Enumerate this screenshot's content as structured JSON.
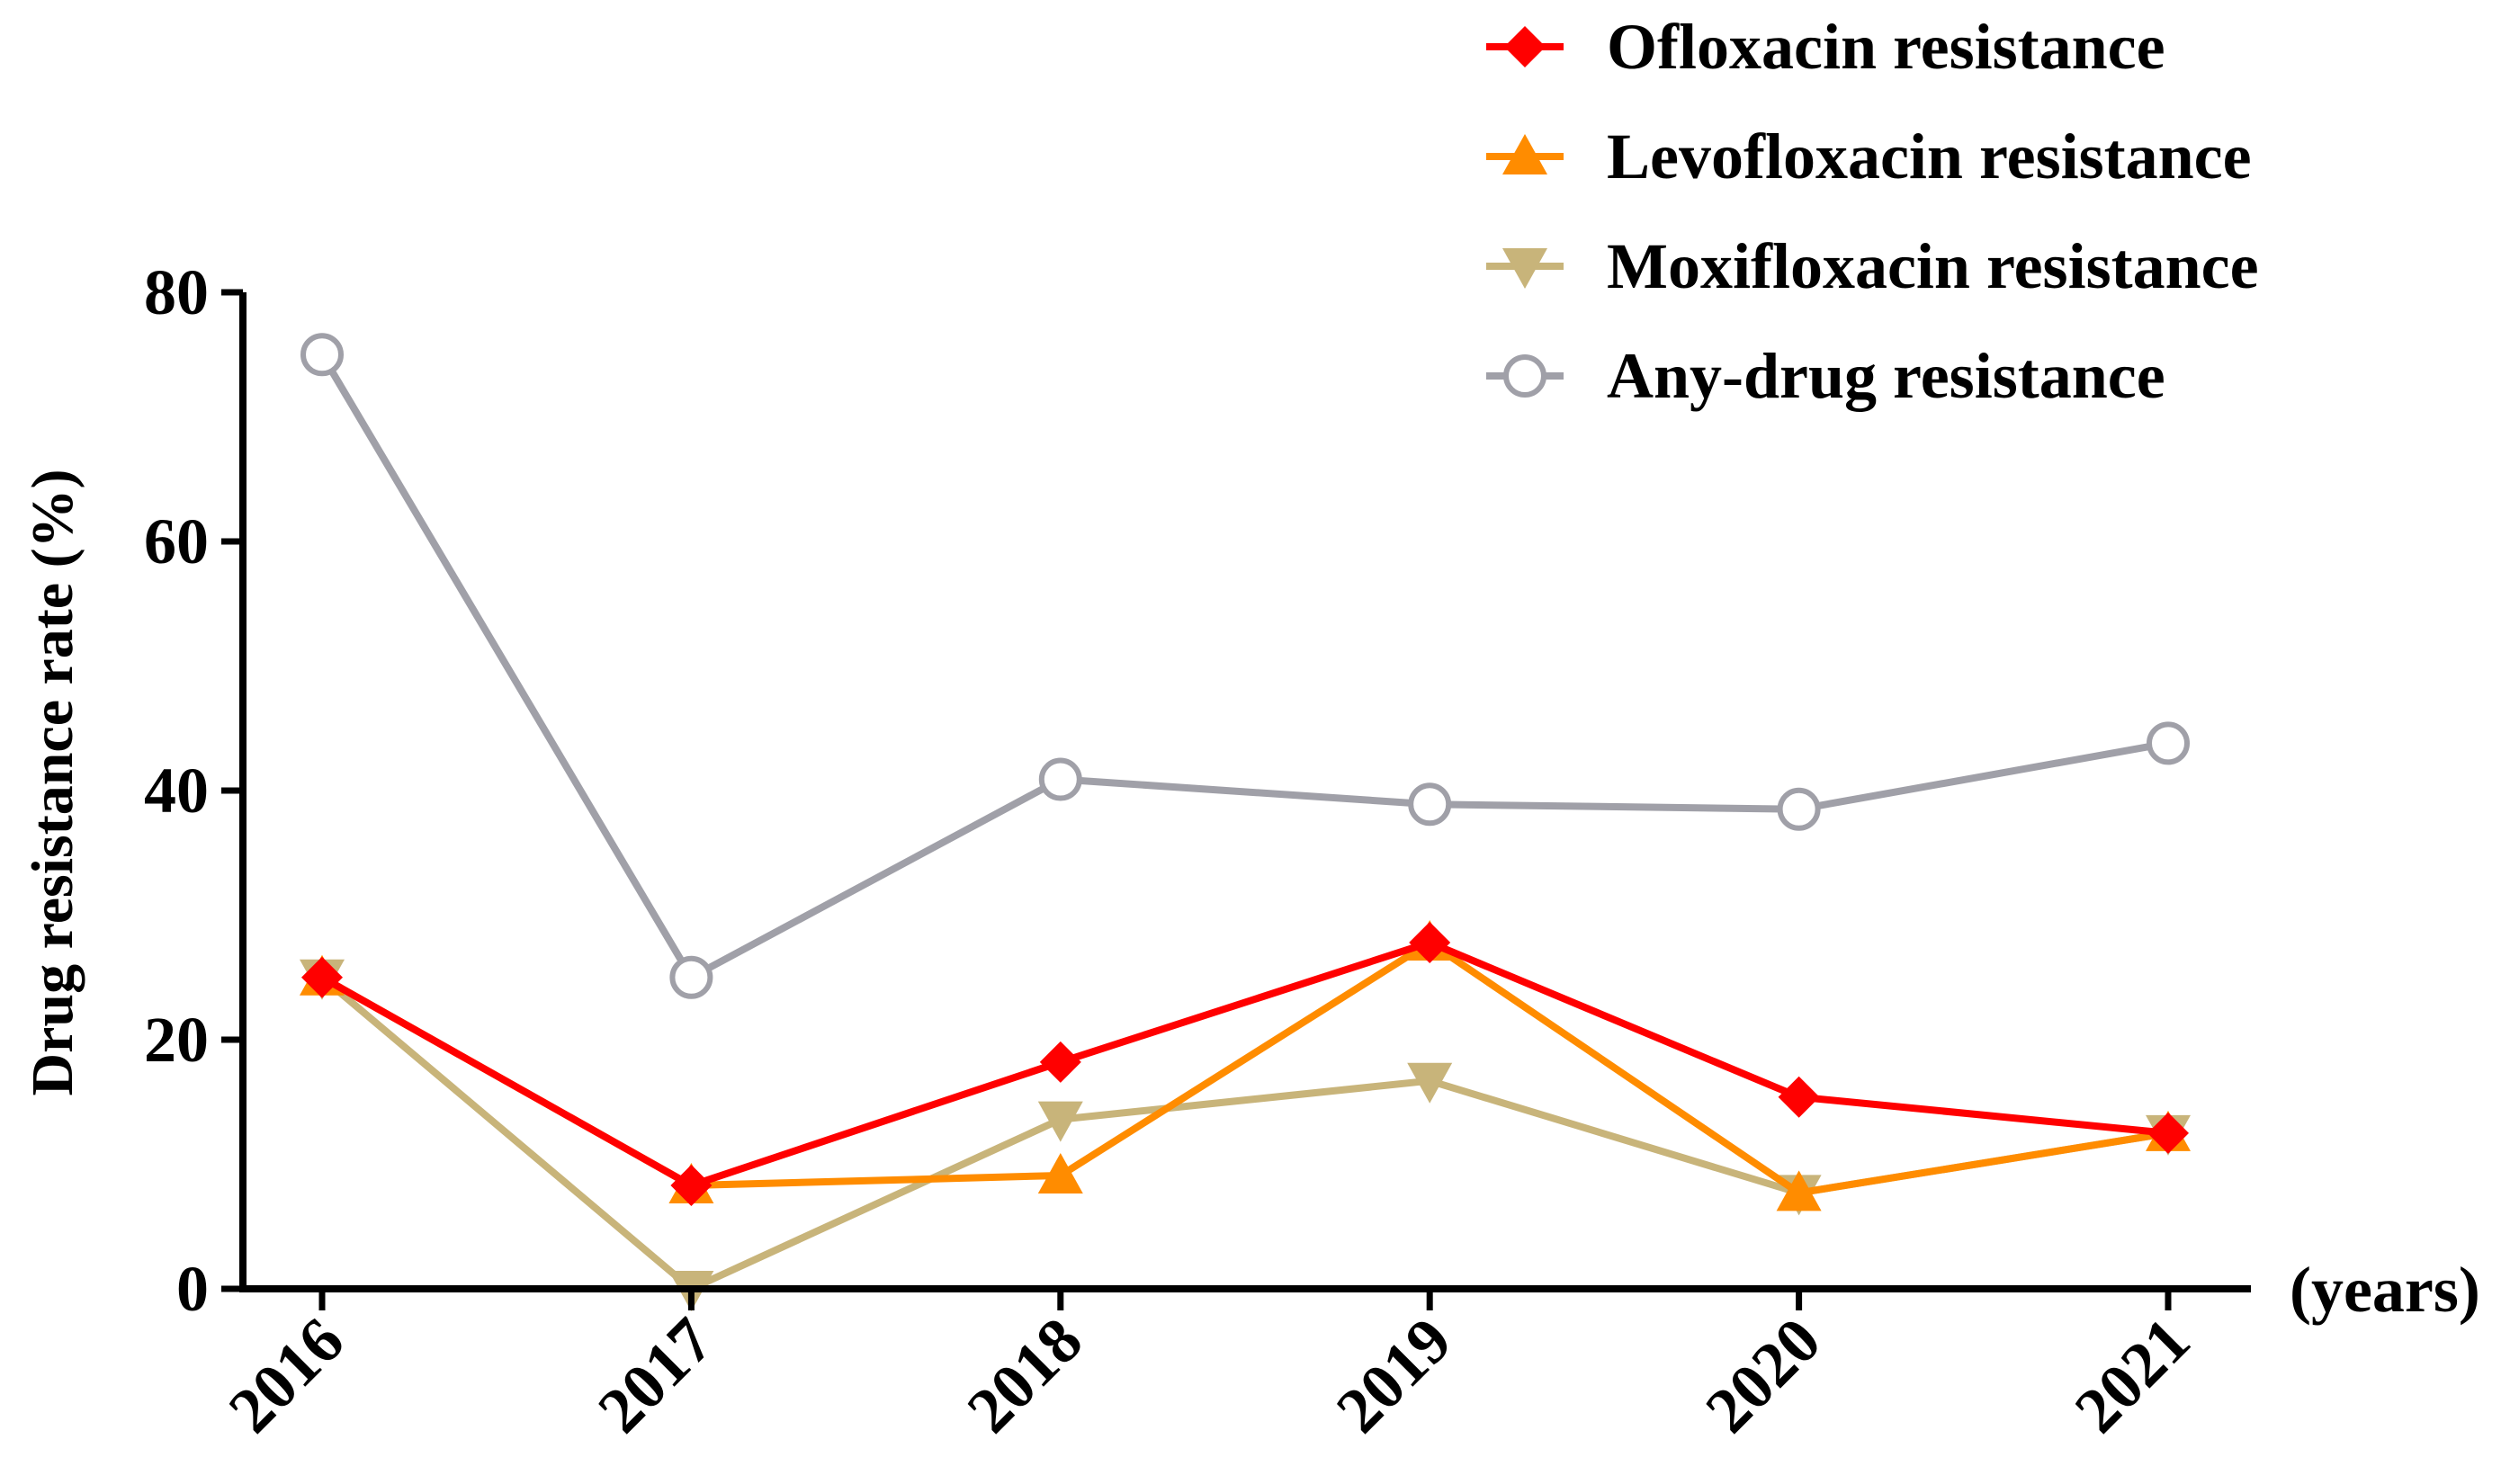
{
  "chart_data": {
    "type": "line",
    "title": "",
    "xlabel": "(years)",
    "ylabel": "Drug resistance rate (%)",
    "categories": [
      "2016",
      "2017",
      "2018",
      "2019",
      "2020",
      "2021"
    ],
    "ylim": [
      0,
      80
    ],
    "yticks": [
      0,
      20,
      40,
      60,
      80
    ],
    "yticklabels": [
      "0",
      "20",
      "40",
      "60",
      "80"
    ],
    "grid": false,
    "legend_position": "top-right",
    "series": [
      {
        "name": "Ofloxacin resistance",
        "marker": "diamond",
        "color": "#ff0000",
        "values": [
          25.0,
          8.3,
          18.2,
          27.8,
          15.4,
          12.5
        ]
      },
      {
        "name": "Levofloxacin resistance",
        "marker": "triangle-up",
        "color": "#ff8c00",
        "values": [
          25.0,
          8.3,
          9.1,
          27.8,
          7.7,
          12.5
        ]
      },
      {
        "name": "Moxifloxacin resistance",
        "marker": "triangle-down",
        "color": "#c8b47a",
        "values": [
          25.0,
          0.0,
          13.6,
          16.7,
          7.7,
          12.5
        ]
      },
      {
        "name": "Any-drug resistance",
        "marker": "circle-open",
        "color": "#a0a0a8",
        "values": [
          75.0,
          25.0,
          40.9,
          38.9,
          38.5,
          43.8
        ]
      }
    ]
  }
}
